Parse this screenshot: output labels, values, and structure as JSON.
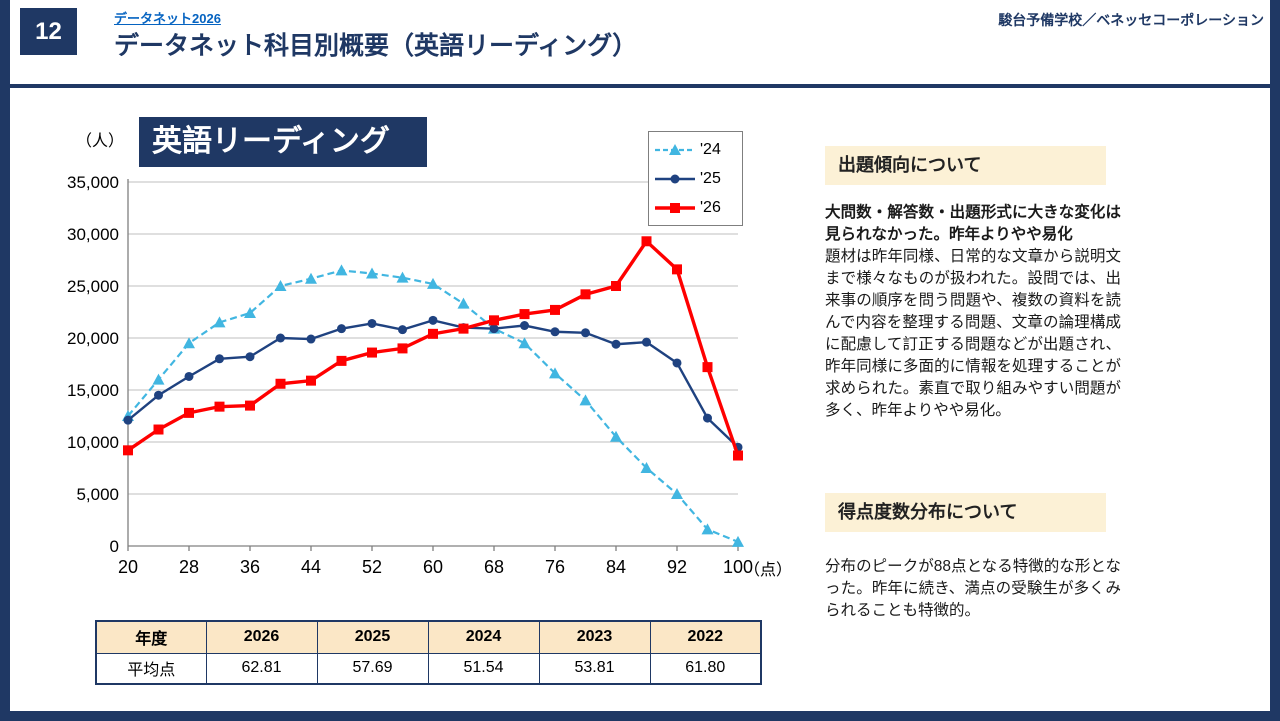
{
  "colors": {
    "navy": "#1F3864",
    "link": "#0563C1",
    "cream": "#FCF1D6",
    "tableHeaderBg": "#FBE7C6",
    "grid": "#BFBFBF"
  },
  "page": {
    "number": "12",
    "link": "データネット2026",
    "title": "データネット科目別概要（英語リーディング）",
    "org": "駿台予備学校／ベネッセコーポレーション"
  },
  "chart": {
    "title": "英語リーディング",
    "unit_y": "（人）",
    "unit_x": "（点）"
  },
  "chart_data": {
    "type": "line",
    "x": [
      20,
      24,
      28,
      32,
      36,
      40,
      44,
      48,
      52,
      56,
      60,
      64,
      68,
      72,
      76,
      80,
      84,
      88,
      92,
      96,
      100
    ],
    "xticks": [
      20,
      28,
      36,
      44,
      52,
      60,
      68,
      76,
      84,
      92,
      100
    ],
    "ylim": [
      0,
      35000
    ],
    "yticks": [
      0,
      5000,
      10000,
      15000,
      20000,
      25000,
      30000,
      35000
    ],
    "grid": "horizontal",
    "legend_position": "top-right",
    "series": [
      {
        "name": "'24",
        "color": "#41B6E1",
        "style": "dashed",
        "marker": "triangle",
        "line_width": 2.2,
        "values": [
          12500,
          16000,
          19500,
          21500,
          22400,
          25000,
          25700,
          26500,
          26200,
          25800,
          25200,
          23300,
          20900,
          19500,
          16600,
          14000,
          10500,
          7500,
          5000,
          1600,
          400
        ]
      },
      {
        "name": "'25",
        "color": "#1F4280",
        "style": "solid",
        "marker": "circle",
        "line_width": 2.4,
        "values": [
          12100,
          14500,
          16300,
          18000,
          18200,
          20000,
          19900,
          20900,
          21400,
          20800,
          21700,
          21000,
          20900,
          21200,
          20600,
          20500,
          19400,
          19600,
          17600,
          12300,
          9500
        ]
      },
      {
        "name": "'26",
        "color": "#FF0000",
        "style": "solid",
        "marker": "square",
        "line_width": 3.4,
        "values": [
          9200,
          11200,
          12800,
          13400,
          13500,
          15600,
          15900,
          17800,
          18600,
          19000,
          20400,
          20900,
          21700,
          22300,
          22700,
          24200,
          25000,
          29300,
          26600,
          17200,
          8700
        ]
      }
    ]
  },
  "table": {
    "headers": [
      "年度",
      "2026",
      "2025",
      "2024",
      "2023",
      "2022"
    ],
    "rows": [
      [
        "平均点",
        "62.81",
        "57.69",
        "51.54",
        "53.81",
        "61.80"
      ]
    ]
  },
  "sections": [
    {
      "heading": "出題傾向について",
      "lead": "大問数・解答数・出題形式に大きな変化は見られなかった。昨年よりやや易化",
      "body": "題材は昨年同様、日常的な文章から説明文まで様々なものが扱われた。設問では、出来事の順序を問う問題や、複数の資料を読んで内容を整理する問題、文章の論理構成に配慮して訂正する問題などが出題され、昨年同様に多面的に情報を処理することが求められた。素直で取り組みやすい問題が多く、昨年よりやや易化。"
    },
    {
      "heading": "得点度数分布について",
      "lead": "",
      "body": "分布のピークが88点となる特徴的な形となった。昨年に続き、満点の受験生が多くみられることも特徴的。"
    }
  ]
}
